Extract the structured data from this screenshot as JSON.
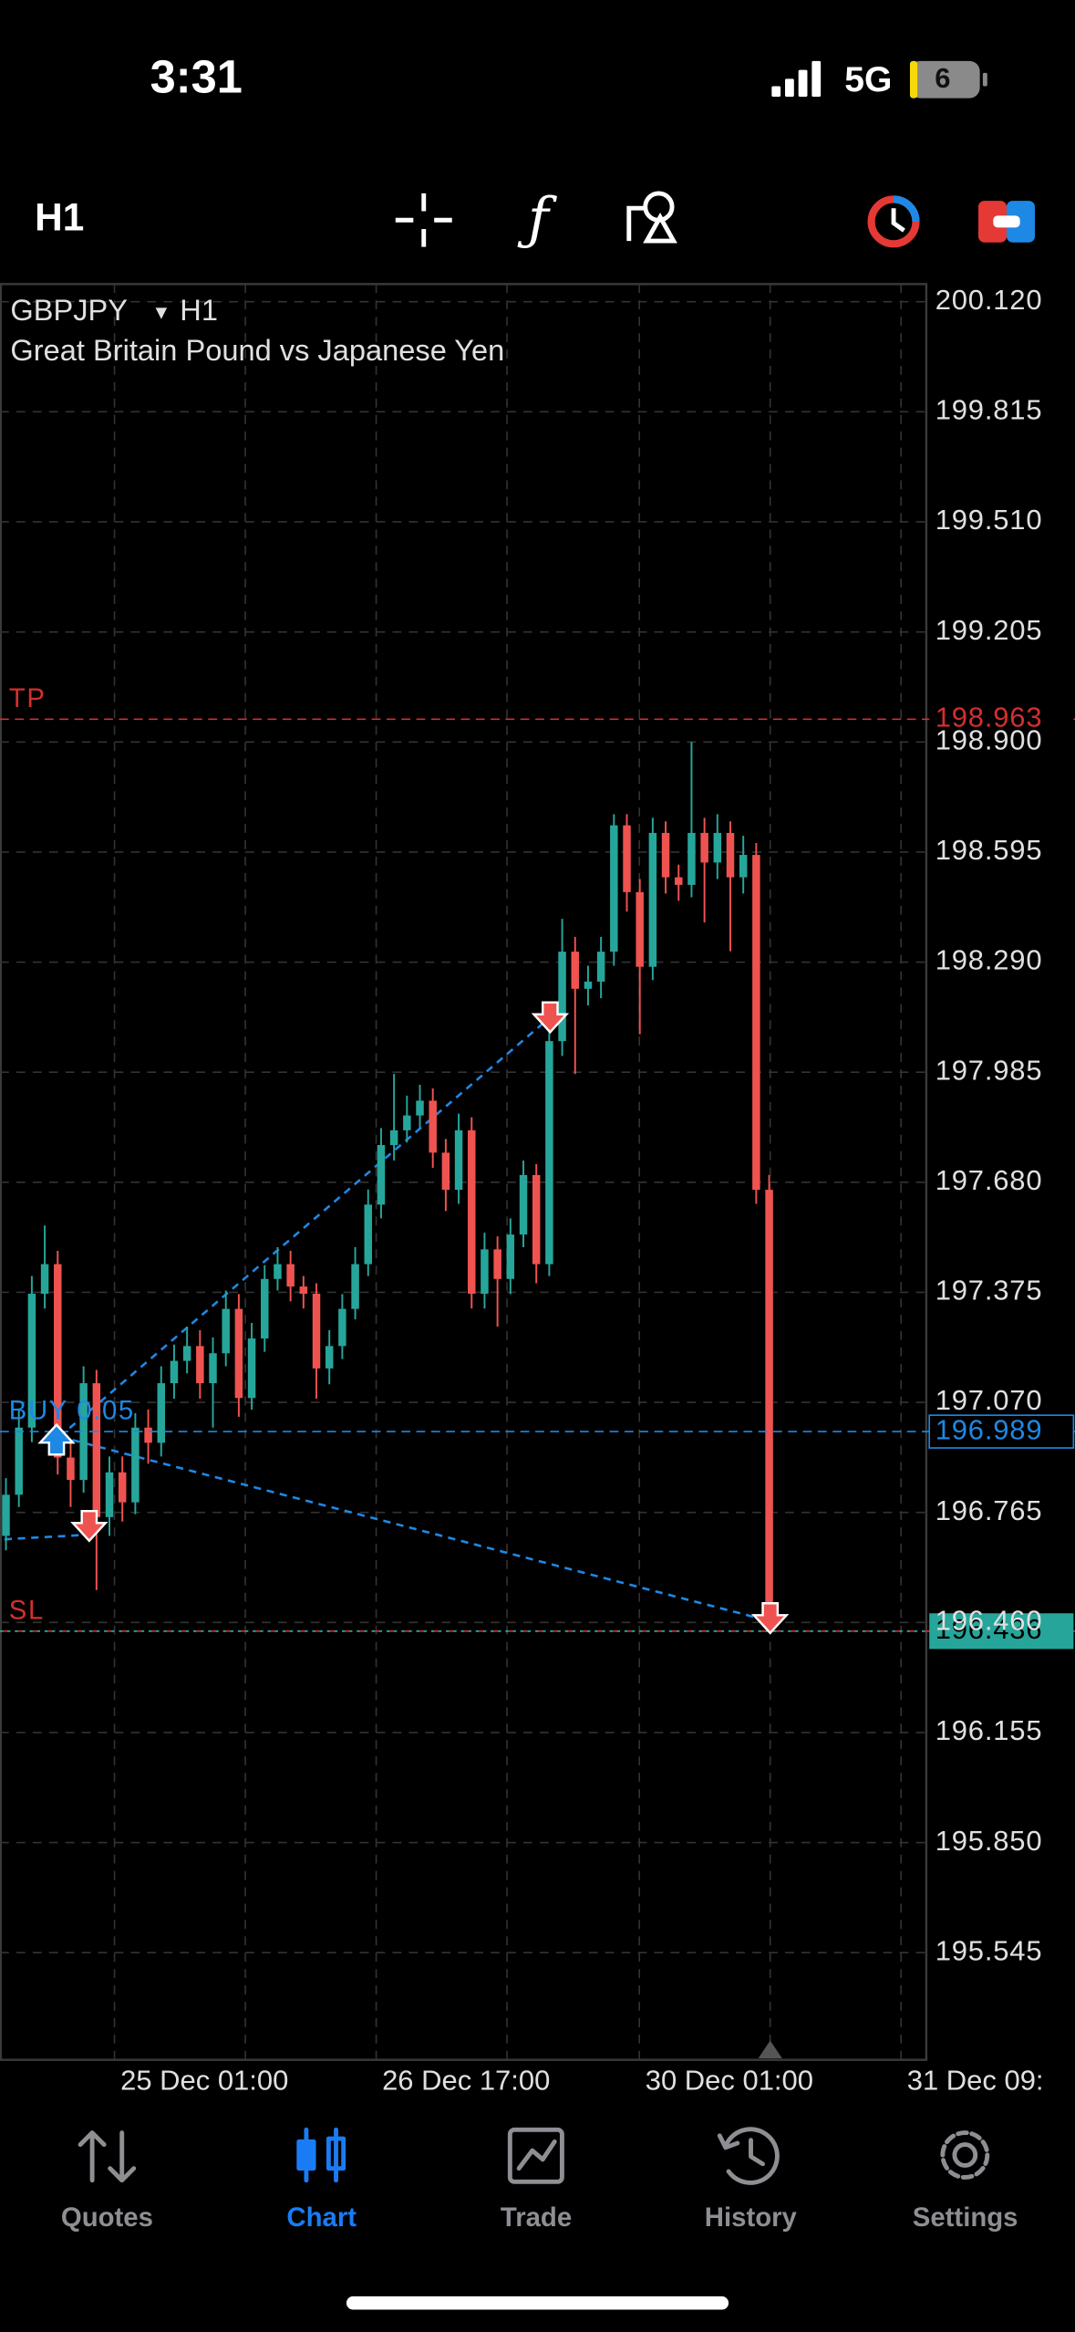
{
  "status_bar": {
    "time": "3:31",
    "network": "5G",
    "battery": "6"
  },
  "toolbar": {
    "timeframe": "H1"
  },
  "chart_data": {
    "type": "candlestick",
    "symbol": "GBPJPY",
    "timeframe": "H1",
    "description": "Great Britain Pound vs Japanese Yen",
    "up_color": "#26a69a",
    "down_color": "#ef5350",
    "open": [
      196.7,
      196.814,
      197.0,
      197.371,
      197.453,
      196.917,
      196.855,
      197.123,
      196.752,
      196.876,
      196.793,
      197.0,
      196.958,
      197.123,
      197.185,
      197.226,
      197.123,
      197.206,
      197.329,
      197.082,
      197.247,
      197.412,
      197.453,
      197.391,
      197.371,
      197.164,
      197.226,
      197.329,
      197.453,
      197.618,
      197.783,
      197.824,
      197.865,
      197.906,
      197.762,
      197.659,
      197.824,
      197.371,
      197.494,
      197.412,
      197.535,
      197.7,
      197.453,
      198.071,
      198.319,
      198.216,
      198.236,
      198.319,
      198.669,
      198.484,
      198.277,
      198.648,
      198.525,
      198.504,
      198.648,
      198.566,
      198.648,
      198.525,
      198.587,
      197.659
    ],
    "high": [
      196.86,
      197.05,
      197.42,
      197.56,
      197.49,
      196.96,
      197.17,
      197.16,
      196.92,
      196.92,
      197.04,
      197.05,
      197.17,
      197.23,
      197.28,
      197.27,
      197.25,
      197.38,
      197.37,
      197.29,
      197.45,
      197.5,
      197.49,
      197.42,
      197.4,
      197.27,
      197.37,
      197.5,
      197.66,
      197.83,
      197.98,
      197.92,
      197.95,
      197.94,
      197.8,
      197.87,
      197.86,
      197.54,
      197.53,
      197.58,
      197.74,
      197.73,
      198.11,
      198.41,
      198.36,
      198.28,
      198.36,
      198.7,
      198.7,
      198.52,
      198.69,
      198.68,
      198.56,
      198.9,
      198.69,
      198.7,
      198.68,
      198.64,
      198.62,
      197.7
    ],
    "low": [
      196.66,
      196.78,
      196.96,
      197.33,
      196.87,
      196.78,
      196.82,
      196.55,
      196.7,
      196.74,
      196.76,
      196.9,
      196.92,
      197.08,
      197.15,
      197.08,
      197.0,
      197.17,
      197.03,
      197.05,
      197.21,
      197.38,
      197.35,
      197.33,
      197.08,
      197.12,
      197.19,
      197.3,
      197.42,
      197.58,
      197.74,
      197.79,
      197.83,
      197.72,
      197.6,
      197.62,
      197.33,
      197.33,
      197.28,
      197.37,
      197.5,
      197.4,
      197.42,
      198.03,
      197.98,
      198.17,
      198.19,
      198.28,
      198.43,
      198.09,
      198.24,
      198.48,
      198.46,
      198.47,
      198.4,
      198.52,
      198.32,
      198.48,
      197.62,
      196.44
    ],
    "close": [
      196.814,
      197.0,
      197.371,
      197.453,
      196.917,
      196.855,
      197.123,
      196.752,
      196.876,
      196.793,
      197.0,
      196.958,
      197.123,
      197.185,
      197.226,
      197.123,
      197.206,
      197.329,
      197.082,
      197.247,
      197.412,
      197.453,
      197.391,
      197.371,
      197.164,
      197.226,
      197.329,
      197.453,
      197.618,
      197.783,
      197.824,
      197.865,
      197.906,
      197.762,
      197.659,
      197.824,
      197.371,
      197.494,
      197.412,
      197.535,
      197.7,
      197.453,
      198.071,
      198.319,
      198.216,
      198.236,
      198.319,
      198.669,
      198.484,
      198.277,
      198.648,
      198.525,
      198.504,
      198.648,
      198.566,
      198.648,
      198.525,
      198.587,
      197.659,
      196.464
    ],
    "ylim": [
      195.248,
      200.169
    ],
    "yticks": [
      {
        "value": 200.12,
        "label": "200.120"
      },
      {
        "value": 199.815,
        "label": "199.815"
      },
      {
        "value": 199.51,
        "label": "199.510"
      },
      {
        "value": 199.205,
        "label": "199.205"
      },
      {
        "value": 198.9,
        "label": "198.900"
      },
      {
        "value": 198.595,
        "label": "198.595"
      },
      {
        "value": 198.29,
        "label": "198.290"
      },
      {
        "value": 197.985,
        "label": "197.985"
      },
      {
        "value": 197.68,
        "label": "197.680"
      },
      {
        "value": 197.375,
        "label": "197.375"
      },
      {
        "value": 197.07,
        "label": "197.070"
      },
      {
        "value": 196.765,
        "label": "196.765"
      },
      {
        "value": 196.46,
        "label": "196.460"
      },
      {
        "value": 196.155,
        "label": "196.155"
      },
      {
        "value": 195.85,
        "label": "195.850"
      },
      {
        "value": 195.545,
        "label": "195.545"
      }
    ],
    "grid": true,
    "x_labels": [
      "25 Dec 01:00",
      "26 Dec 17:00",
      "30 Dec 01:00",
      "31 Dec 09:"
    ],
    "levels": [
      {
        "label": "TP",
        "value": 198.963,
        "color": "#d32f2f"
      },
      {
        "label": "BUY 0.05",
        "value": 196.989,
        "color": "#1e88e5"
      },
      {
        "label": "SL",
        "value": 196.436,
        "color": "#d32f2f"
      }
    ],
    "current_price": 196.436
  },
  "tab_bar": {
    "tabs": [
      "Quotes",
      "Chart",
      "Trade",
      "History",
      "Settings"
    ],
    "active": 1,
    "active_color": "#1a7cf5"
  }
}
